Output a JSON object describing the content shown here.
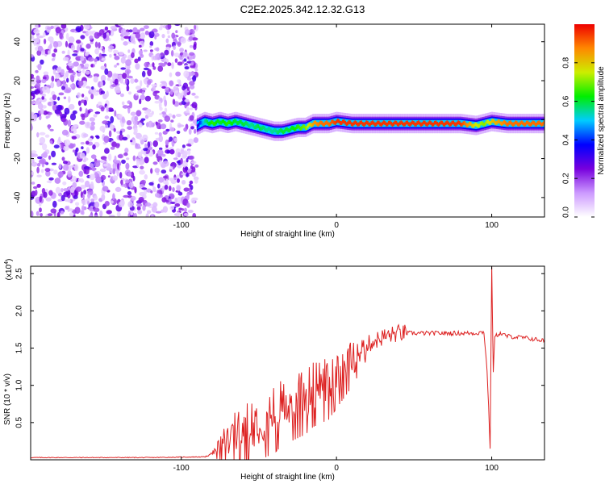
{
  "title": "C2E2.2025.342.12.32.G13",
  "chart_data": [
    {
      "type": "heatmap",
      "xlabel": "Height of straight line (km)",
      "ylabel": "Frequency (Hz)",
      "xlim": [
        -197,
        134
      ],
      "ylim": [
        -50,
        49
      ],
      "xticks": [
        -100,
        0,
        100
      ],
      "xtick_labels": [
        "-100",
        "0",
        "100"
      ],
      "yticks": [
        -40,
        -20,
        0,
        20,
        40
      ],
      "ytick_labels": [
        "-40",
        "-20",
        "0",
        "20",
        "40"
      ],
      "noise_region_x": [
        -197,
        -90
      ],
      "ridge": {
        "x": [
          -90,
          -85,
          -80,
          -75,
          -70,
          -65,
          -60,
          -55,
          -50,
          -45,
          -40,
          -35,
          -30,
          -25,
          -20,
          -15,
          -10,
          -5,
          0,
          10,
          20,
          40,
          60,
          80,
          90,
          95,
          100,
          110,
          120,
          134
        ],
        "frequency": [
          -3,
          -1,
          -2,
          -1,
          -2,
          -1,
          -2,
          -3,
          -4,
          -5,
          -6,
          -6,
          -5,
          -4,
          -4,
          -2,
          -2,
          -2,
          -1,
          -2,
          -2,
          -2,
          -2,
          -2,
          -3,
          -2,
          -1,
          -2,
          -2,
          -2
        ],
        "amplitude": [
          0.3,
          0.55,
          0.65,
          0.6,
          0.65,
          0.6,
          0.6,
          0.55,
          0.6,
          0.55,
          0.55,
          0.6,
          0.6,
          0.65,
          0.7,
          0.85,
          0.9,
          0.9,
          0.95,
          0.95,
          0.95,
          0.95,
          0.95,
          0.95,
          0.75,
          0.7,
          0.8,
          0.9,
          0.9,
          0.9
        ]
      },
      "colorbar": {
        "label": "Normalized spectral amplitude",
        "range": [
          0,
          1
        ],
        "ticks": [
          0.0,
          0.2,
          0.4,
          0.6,
          0.8
        ],
        "tick_labels": [
          "0.0",
          "0.2",
          "0.4",
          "0.6",
          "0.8"
        ],
        "colors": [
          "#ffffff",
          "#cc99ff",
          "#7700dd",
          "#0000ff",
          "#00ccff",
          "#00ee00",
          "#ccee00",
          "#ff8800",
          "#ee0000"
        ]
      }
    },
    {
      "type": "line",
      "xlabel": "Height of straight line (km)",
      "ylabel": "SNR (10 * v/v)",
      "scale_label": "(x10",
      "scale_exponent": "4",
      "xlim": [
        -197,
        134
      ],
      "ylim": [
        0,
        2.6
      ],
      "xticks": [
        -100,
        0,
        100
      ],
      "xtick_labels": [
        "-100",
        "0",
        "100"
      ],
      "yticks": [
        0.5,
        1.0,
        1.5,
        2.0,
        2.5
      ],
      "ytick_labels": [
        "0.5",
        "1.0",
        "1.5",
        "2.0",
        "2.5"
      ],
      "color": "#dd2222",
      "series": [
        {
          "name": "SNR",
          "x": [
            -197,
            -120,
            -85,
            -80,
            -75,
            -70,
            -65,
            -60,
            -55,
            -50,
            -45,
            -40,
            -35,
            -30,
            -25,
            -20,
            -15,
            -10,
            -5,
            0,
            5,
            10,
            15,
            20,
            25,
            30,
            40,
            50,
            60,
            70,
            80,
            90,
            95,
            97,
            98,
            99,
            100,
            101,
            102,
            105,
            110,
            120,
            134
          ],
          "y": [
            0.03,
            0.03,
            0.04,
            0.08,
            0.2,
            0.3,
            0.35,
            0.4,
            0.5,
            0.55,
            0.6,
            0.65,
            0.75,
            0.8,
            0.85,
            0.9,
            1.0,
            1.05,
            1.1,
            1.25,
            1.3,
            1.35,
            1.45,
            1.55,
            1.6,
            1.65,
            1.7,
            1.7,
            1.7,
            1.7,
            1.7,
            1.7,
            1.72,
            1.2,
            0.7,
            0.15,
            2.6,
            1.2,
            1.65,
            1.7,
            1.66,
            1.64,
            1.6
          ]
        }
      ]
    }
  ]
}
